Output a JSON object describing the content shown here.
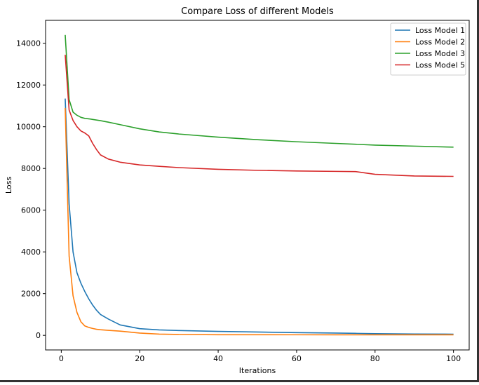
{
  "chart_data": {
    "type": "line",
    "title": "Compare Loss of different Models",
    "xlabel": "Iterations",
    "ylabel": "Loss",
    "xlim": [
      -4,
      104
    ],
    "ylim": [
      -700,
      15100
    ],
    "xticks": [
      0,
      20,
      40,
      60,
      80,
      100
    ],
    "yticks": [
      0,
      2000,
      4000,
      6000,
      8000,
      10000,
      12000,
      14000
    ],
    "grid": false,
    "legend_position": "top-right",
    "x": [
      1,
      2,
      3,
      4,
      5,
      6,
      7,
      8,
      9,
      10,
      12,
      15,
      20,
      25,
      30,
      40,
      50,
      60,
      70,
      75,
      80,
      90,
      100
    ],
    "series": [
      {
        "name": "Loss Model 1",
        "color": "#1f77b4",
        "values": [
          11350,
          6300,
          4000,
          3000,
          2500,
          2100,
          1750,
          1450,
          1200,
          1000,
          780,
          500,
          320,
          260,
          230,
          190,
          160,
          130,
          110,
          95,
          80,
          65,
          55
        ]
      },
      {
        "name": "Loss Model 2",
        "color": "#ff7f0e",
        "values": [
          10900,
          3800,
          1900,
          1100,
          650,
          450,
          380,
          330,
          290,
          270,
          240,
          200,
          110,
          60,
          40,
          30,
          28,
          27,
          26,
          25,
          25,
          24,
          24
        ]
      },
      {
        "name": "Loss Model 3",
        "color": "#2ca02c",
        "values": [
          14400,
          11300,
          10700,
          10550,
          10450,
          10400,
          10380,
          10350,
          10320,
          10290,
          10220,
          10100,
          9900,
          9750,
          9650,
          9500,
          9380,
          9280,
          9200,
          9160,
          9120,
          9070,
          9020
        ]
      },
      {
        "name": "Loss Model 5",
        "color": "#d62728",
        "values": [
          13450,
          10800,
          10300,
          10000,
          9800,
          9700,
          9560,
          9200,
          8900,
          8650,
          8450,
          8300,
          8170,
          8100,
          8040,
          7960,
          7910,
          7880,
          7860,
          7850,
          7720,
          7640,
          7620
        ]
      }
    ]
  }
}
